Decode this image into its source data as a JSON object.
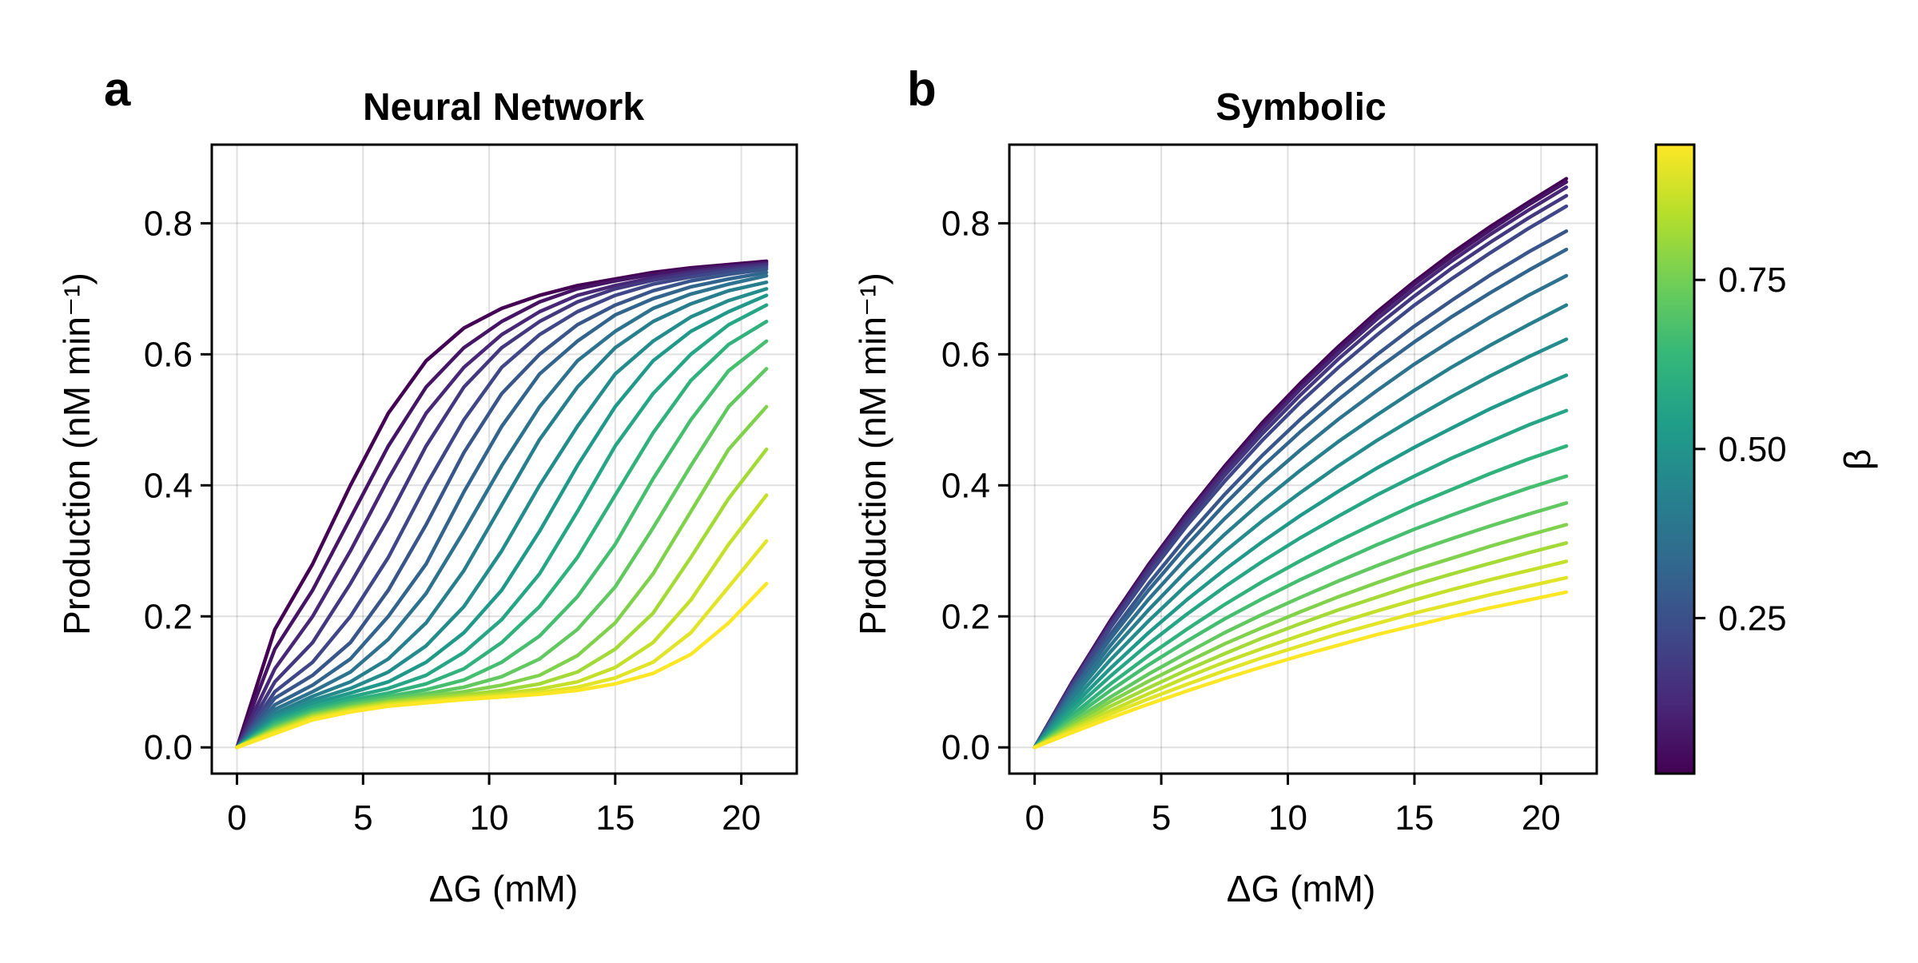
{
  "figure": {
    "panels": [
      {
        "letter": "a",
        "title": "Neural Network"
      },
      {
        "letter": "b",
        "title": "Symbolic"
      }
    ],
    "colorbar": {
      "label": "β",
      "tick_labels": [
        "0.25",
        "0.50",
        "0.75"
      ],
      "ticks": [
        0.25,
        0.5,
        0.75
      ],
      "range": [
        0.02,
        0.95
      ]
    }
  },
  "chart_data": [
    {
      "type": "line",
      "title": "Neural Network",
      "xlabel": "ΔG (mM)",
      "ylabel": "Production (nM min⁻¹)",
      "xlim": [
        -1,
        22.2
      ],
      "ylim": [
        -0.04,
        0.92
      ],
      "xticks": [
        0,
        5,
        10,
        15,
        20
      ],
      "yticks": [
        0.0,
        0.2,
        0.4,
        0.6,
        0.8
      ],
      "xtick_labels": [
        "0",
        "5",
        "10",
        "15",
        "20"
      ],
      "ytick_labels": [
        "0.0",
        "0.2",
        "0.4",
        "0.6",
        "0.8"
      ],
      "grid": true,
      "colormap": "viridis",
      "color_variable": "β",
      "x": [
        0,
        1.5,
        3,
        4.5,
        6,
        7.5,
        9,
        10.5,
        12,
        13.5,
        15,
        16.5,
        18,
        19.5,
        21
      ],
      "series": [
        {
          "beta": 0.02,
          "values": [
            0,
            0.18,
            0.28,
            0.4,
            0.51,
            0.59,
            0.64,
            0.67,
            0.69,
            0.705,
            0.715,
            0.725,
            0.732,
            0.737,
            0.742
          ]
        },
        {
          "beta": 0.07,
          "values": [
            0,
            0.15,
            0.24,
            0.35,
            0.46,
            0.55,
            0.61,
            0.65,
            0.68,
            0.7,
            0.712,
            0.722,
            0.73,
            0.735,
            0.74
          ]
        },
        {
          "beta": 0.12,
          "values": [
            0,
            0.12,
            0.2,
            0.3,
            0.41,
            0.51,
            0.58,
            0.63,
            0.665,
            0.69,
            0.705,
            0.717,
            0.726,
            0.733,
            0.738
          ]
        },
        {
          "beta": 0.17,
          "values": [
            0,
            0.1,
            0.16,
            0.25,
            0.35,
            0.46,
            0.55,
            0.61,
            0.65,
            0.68,
            0.7,
            0.713,
            0.723,
            0.73,
            0.736
          ]
        },
        {
          "beta": 0.22,
          "values": [
            0,
            0.085,
            0.13,
            0.2,
            0.29,
            0.4,
            0.5,
            0.58,
            0.63,
            0.665,
            0.69,
            0.707,
            0.718,
            0.727,
            0.733
          ]
        },
        {
          "beta": 0.27,
          "values": [
            0,
            0.075,
            0.11,
            0.16,
            0.24,
            0.34,
            0.45,
            0.54,
            0.6,
            0.645,
            0.675,
            0.697,
            0.712,
            0.722,
            0.73
          ]
        },
        {
          "beta": 0.32,
          "values": [
            0,
            0.065,
            0.095,
            0.135,
            0.2,
            0.28,
            0.39,
            0.49,
            0.57,
            0.62,
            0.66,
            0.685,
            0.703,
            0.715,
            0.725
          ]
        },
        {
          "beta": 0.37,
          "values": [
            0,
            0.058,
            0.085,
            0.115,
            0.165,
            0.235,
            0.33,
            0.43,
            0.52,
            0.59,
            0.635,
            0.67,
            0.692,
            0.707,
            0.72
          ]
        },
        {
          "beta": 0.42,
          "values": [
            0,
            0.052,
            0.078,
            0.1,
            0.135,
            0.19,
            0.27,
            0.37,
            0.47,
            0.55,
            0.61,
            0.65,
            0.677,
            0.697,
            0.71
          ]
        },
        {
          "beta": 0.47,
          "values": [
            0,
            0.047,
            0.072,
            0.09,
            0.115,
            0.155,
            0.215,
            0.3,
            0.4,
            0.49,
            0.57,
            0.62,
            0.657,
            0.682,
            0.7
          ]
        },
        {
          "beta": 0.52,
          "values": [
            0,
            0.043,
            0.067,
            0.083,
            0.1,
            0.13,
            0.175,
            0.24,
            0.33,
            0.43,
            0.52,
            0.59,
            0.635,
            0.665,
            0.69
          ]
        },
        {
          "beta": 0.57,
          "values": [
            0,
            0.04,
            0.062,
            0.077,
            0.09,
            0.11,
            0.145,
            0.195,
            0.265,
            0.36,
            0.46,
            0.54,
            0.6,
            0.645,
            0.675
          ]
        },
        {
          "beta": 0.62,
          "values": [
            0,
            0.037,
            0.058,
            0.072,
            0.083,
            0.097,
            0.12,
            0.16,
            0.215,
            0.29,
            0.385,
            0.48,
            0.56,
            0.615,
            0.65
          ]
        },
        {
          "beta": 0.67,
          "values": [
            0,
            0.034,
            0.055,
            0.068,
            0.078,
            0.088,
            0.103,
            0.13,
            0.17,
            0.23,
            0.31,
            0.41,
            0.5,
            0.575,
            0.62
          ]
        },
        {
          "beta": 0.72,
          "values": [
            0,
            0.031,
            0.052,
            0.065,
            0.074,
            0.082,
            0.092,
            0.108,
            0.135,
            0.18,
            0.245,
            0.335,
            0.43,
            0.52,
            0.578
          ]
        },
        {
          "beta": 0.77,
          "values": [
            0,
            0.029,
            0.05,
            0.062,
            0.071,
            0.078,
            0.085,
            0.095,
            0.11,
            0.14,
            0.19,
            0.265,
            0.36,
            0.455,
            0.52
          ]
        },
        {
          "beta": 0.82,
          "values": [
            0,
            0.027,
            0.048,
            0.06,
            0.069,
            0.075,
            0.08,
            0.087,
            0.097,
            0.115,
            0.15,
            0.205,
            0.29,
            0.38,
            0.455
          ]
        },
        {
          "beta": 0.87,
          "values": [
            0,
            0.025,
            0.046,
            0.058,
            0.067,
            0.072,
            0.077,
            0.082,
            0.089,
            0.1,
            0.122,
            0.16,
            0.225,
            0.31,
            0.385
          ]
        },
        {
          "beta": 0.91,
          "values": [
            0,
            0.023,
            0.044,
            0.056,
            0.065,
            0.07,
            0.075,
            0.079,
            0.084,
            0.092,
            0.106,
            0.13,
            0.175,
            0.245,
            0.315
          ]
        },
        {
          "beta": 0.95,
          "values": [
            0,
            0.021,
            0.042,
            0.054,
            0.063,
            0.068,
            0.073,
            0.077,
            0.081,
            0.087,
            0.097,
            0.113,
            0.142,
            0.19,
            0.25
          ]
        }
      ]
    },
    {
      "type": "line",
      "title": "Symbolic",
      "xlabel": "ΔG (mM)",
      "ylabel": "Production (nM min⁻¹)",
      "xlim": [
        -1,
        22.2
      ],
      "ylim": [
        -0.04,
        0.92
      ],
      "xticks": [
        0,
        5,
        10,
        15,
        20
      ],
      "yticks": [
        0.0,
        0.2,
        0.4,
        0.6,
        0.8
      ],
      "xtick_labels": [
        "0",
        "5",
        "10",
        "15",
        "20"
      ],
      "ytick_labels": [
        "0.0",
        "0.2",
        "0.4",
        "0.6",
        "0.8"
      ],
      "grid": true,
      "colormap": "viridis",
      "color_variable": "β",
      "x": [
        0,
        1.5,
        3,
        4.5,
        6,
        7.5,
        9,
        10.5,
        12,
        13.5,
        15,
        16.5,
        18,
        19.5,
        21
      ],
      "series": [
        {
          "beta": 0.02,
          "values": [
            0,
            0.101,
            0.194,
            0.279,
            0.357,
            0.429,
            0.496,
            0.556,
            0.612,
            0.664,
            0.711,
            0.755,
            0.795,
            0.832,
            0.868
          ]
        },
        {
          "beta": 0.07,
          "values": [
            0,
            0.1,
            0.192,
            0.277,
            0.355,
            0.426,
            0.492,
            0.552,
            0.608,
            0.66,
            0.707,
            0.75,
            0.79,
            0.828,
            0.863
          ]
        },
        {
          "beta": 0.12,
          "values": [
            0,
            0.099,
            0.19,
            0.274,
            0.351,
            0.422,
            0.487,
            0.547,
            0.602,
            0.653,
            0.7,
            0.743,
            0.783,
            0.82,
            0.855
          ]
        },
        {
          "beta": 0.17,
          "values": [
            0,
            0.097,
            0.187,
            0.269,
            0.345,
            0.415,
            0.479,
            0.538,
            0.593,
            0.643,
            0.689,
            0.732,
            0.771,
            0.808,
            0.842
          ]
        },
        {
          "beta": 0.22,
          "values": [
            0,
            0.095,
            0.183,
            0.263,
            0.338,
            0.406,
            0.469,
            0.527,
            0.58,
            0.629,
            0.675,
            0.716,
            0.755,
            0.792,
            0.826
          ]
        },
        {
          "beta": 0.27,
          "values": [
            0,
            0.09,
            0.173,
            0.25,
            0.321,
            0.386,
            0.446,
            0.501,
            0.552,
            0.599,
            0.643,
            0.683,
            0.721,
            0.756,
            0.788
          ]
        },
        {
          "beta": 0.32,
          "values": [
            0,
            0.087,
            0.166,
            0.24,
            0.308,
            0.371,
            0.429,
            0.482,
            0.531,
            0.577,
            0.619,
            0.658,
            0.694,
            0.728,
            0.76
          ]
        },
        {
          "beta": 0.37,
          "values": [
            0,
            0.081,
            0.156,
            0.226,
            0.29,
            0.349,
            0.404,
            0.454,
            0.501,
            0.544,
            0.585,
            0.622,
            0.657,
            0.69,
            0.72
          ]
        },
        {
          "beta": 0.42,
          "values": [
            0,
            0.076,
            0.146,
            0.21,
            0.27,
            0.325,
            0.376,
            0.423,
            0.467,
            0.507,
            0.545,
            0.581,
            0.614,
            0.645,
            0.675
          ]
        },
        {
          "beta": 0.47,
          "values": [
            0,
            0.069,
            0.134,
            0.193,
            0.248,
            0.299,
            0.346,
            0.389,
            0.43,
            0.468,
            0.503,
            0.536,
            0.567,
            0.596,
            0.623
          ]
        },
        {
          "beta": 0.52,
          "values": [
            0,
            0.063,
            0.121,
            0.175,
            0.225,
            0.271,
            0.314,
            0.354,
            0.391,
            0.426,
            0.458,
            0.488,
            0.517,
            0.543,
            0.568
          ]
        },
        {
          "beta": 0.57,
          "values": [
            0,
            0.057,
            0.109,
            0.158,
            0.203,
            0.245,
            0.284,
            0.32,
            0.353,
            0.385,
            0.414,
            0.442,
            0.467,
            0.492,
            0.514
          ]
        },
        {
          "beta": 0.62,
          "values": [
            0,
            0.05,
            0.097,
            0.14,
            0.18,
            0.218,
            0.253,
            0.285,
            0.315,
            0.343,
            0.37,
            0.394,
            0.418,
            0.44,
            0.46
          ]
        },
        {
          "beta": 0.67,
          "values": [
            0,
            0.045,
            0.087,
            0.126,
            0.162,
            0.196,
            0.227,
            0.256,
            0.283,
            0.309,
            0.333,
            0.355,
            0.376,
            0.396,
            0.414
          ]
        },
        {
          "beta": 0.72,
          "values": [
            0,
            0.04,
            0.077,
            0.112,
            0.144,
            0.175,
            0.203,
            0.229,
            0.254,
            0.277,
            0.299,
            0.319,
            0.338,
            0.356,
            0.373
          ]
        },
        {
          "beta": 0.77,
          "values": [
            0,
            0.036,
            0.07,
            0.101,
            0.13,
            0.158,
            0.183,
            0.207,
            0.23,
            0.251,
            0.271,
            0.289,
            0.307,
            0.324,
            0.34
          ]
        },
        {
          "beta": 0.82,
          "values": [
            0,
            0.032,
            0.063,
            0.091,
            0.118,
            0.143,
            0.167,
            0.189,
            0.21,
            0.229,
            0.248,
            0.265,
            0.281,
            0.297,
            0.312
          ]
        },
        {
          "beta": 0.87,
          "values": [
            0,
            0.029,
            0.056,
            0.082,
            0.107,
            0.13,
            0.151,
            0.171,
            0.19,
            0.208,
            0.225,
            0.241,
            0.256,
            0.27,
            0.284
          ]
        },
        {
          "beta": 0.91,
          "values": [
            0,
            0.026,
            0.051,
            0.074,
            0.096,
            0.117,
            0.137,
            0.155,
            0.173,
            0.189,
            0.205,
            0.219,
            0.233,
            0.246,
            0.259
          ]
        },
        {
          "beta": 0.95,
          "values": [
            0,
            0.023,
            0.045,
            0.066,
            0.086,
            0.105,
            0.123,
            0.14,
            0.156,
            0.172,
            0.186,
            0.2,
            0.213,
            0.225,
            0.237
          ]
        }
      ]
    }
  ]
}
